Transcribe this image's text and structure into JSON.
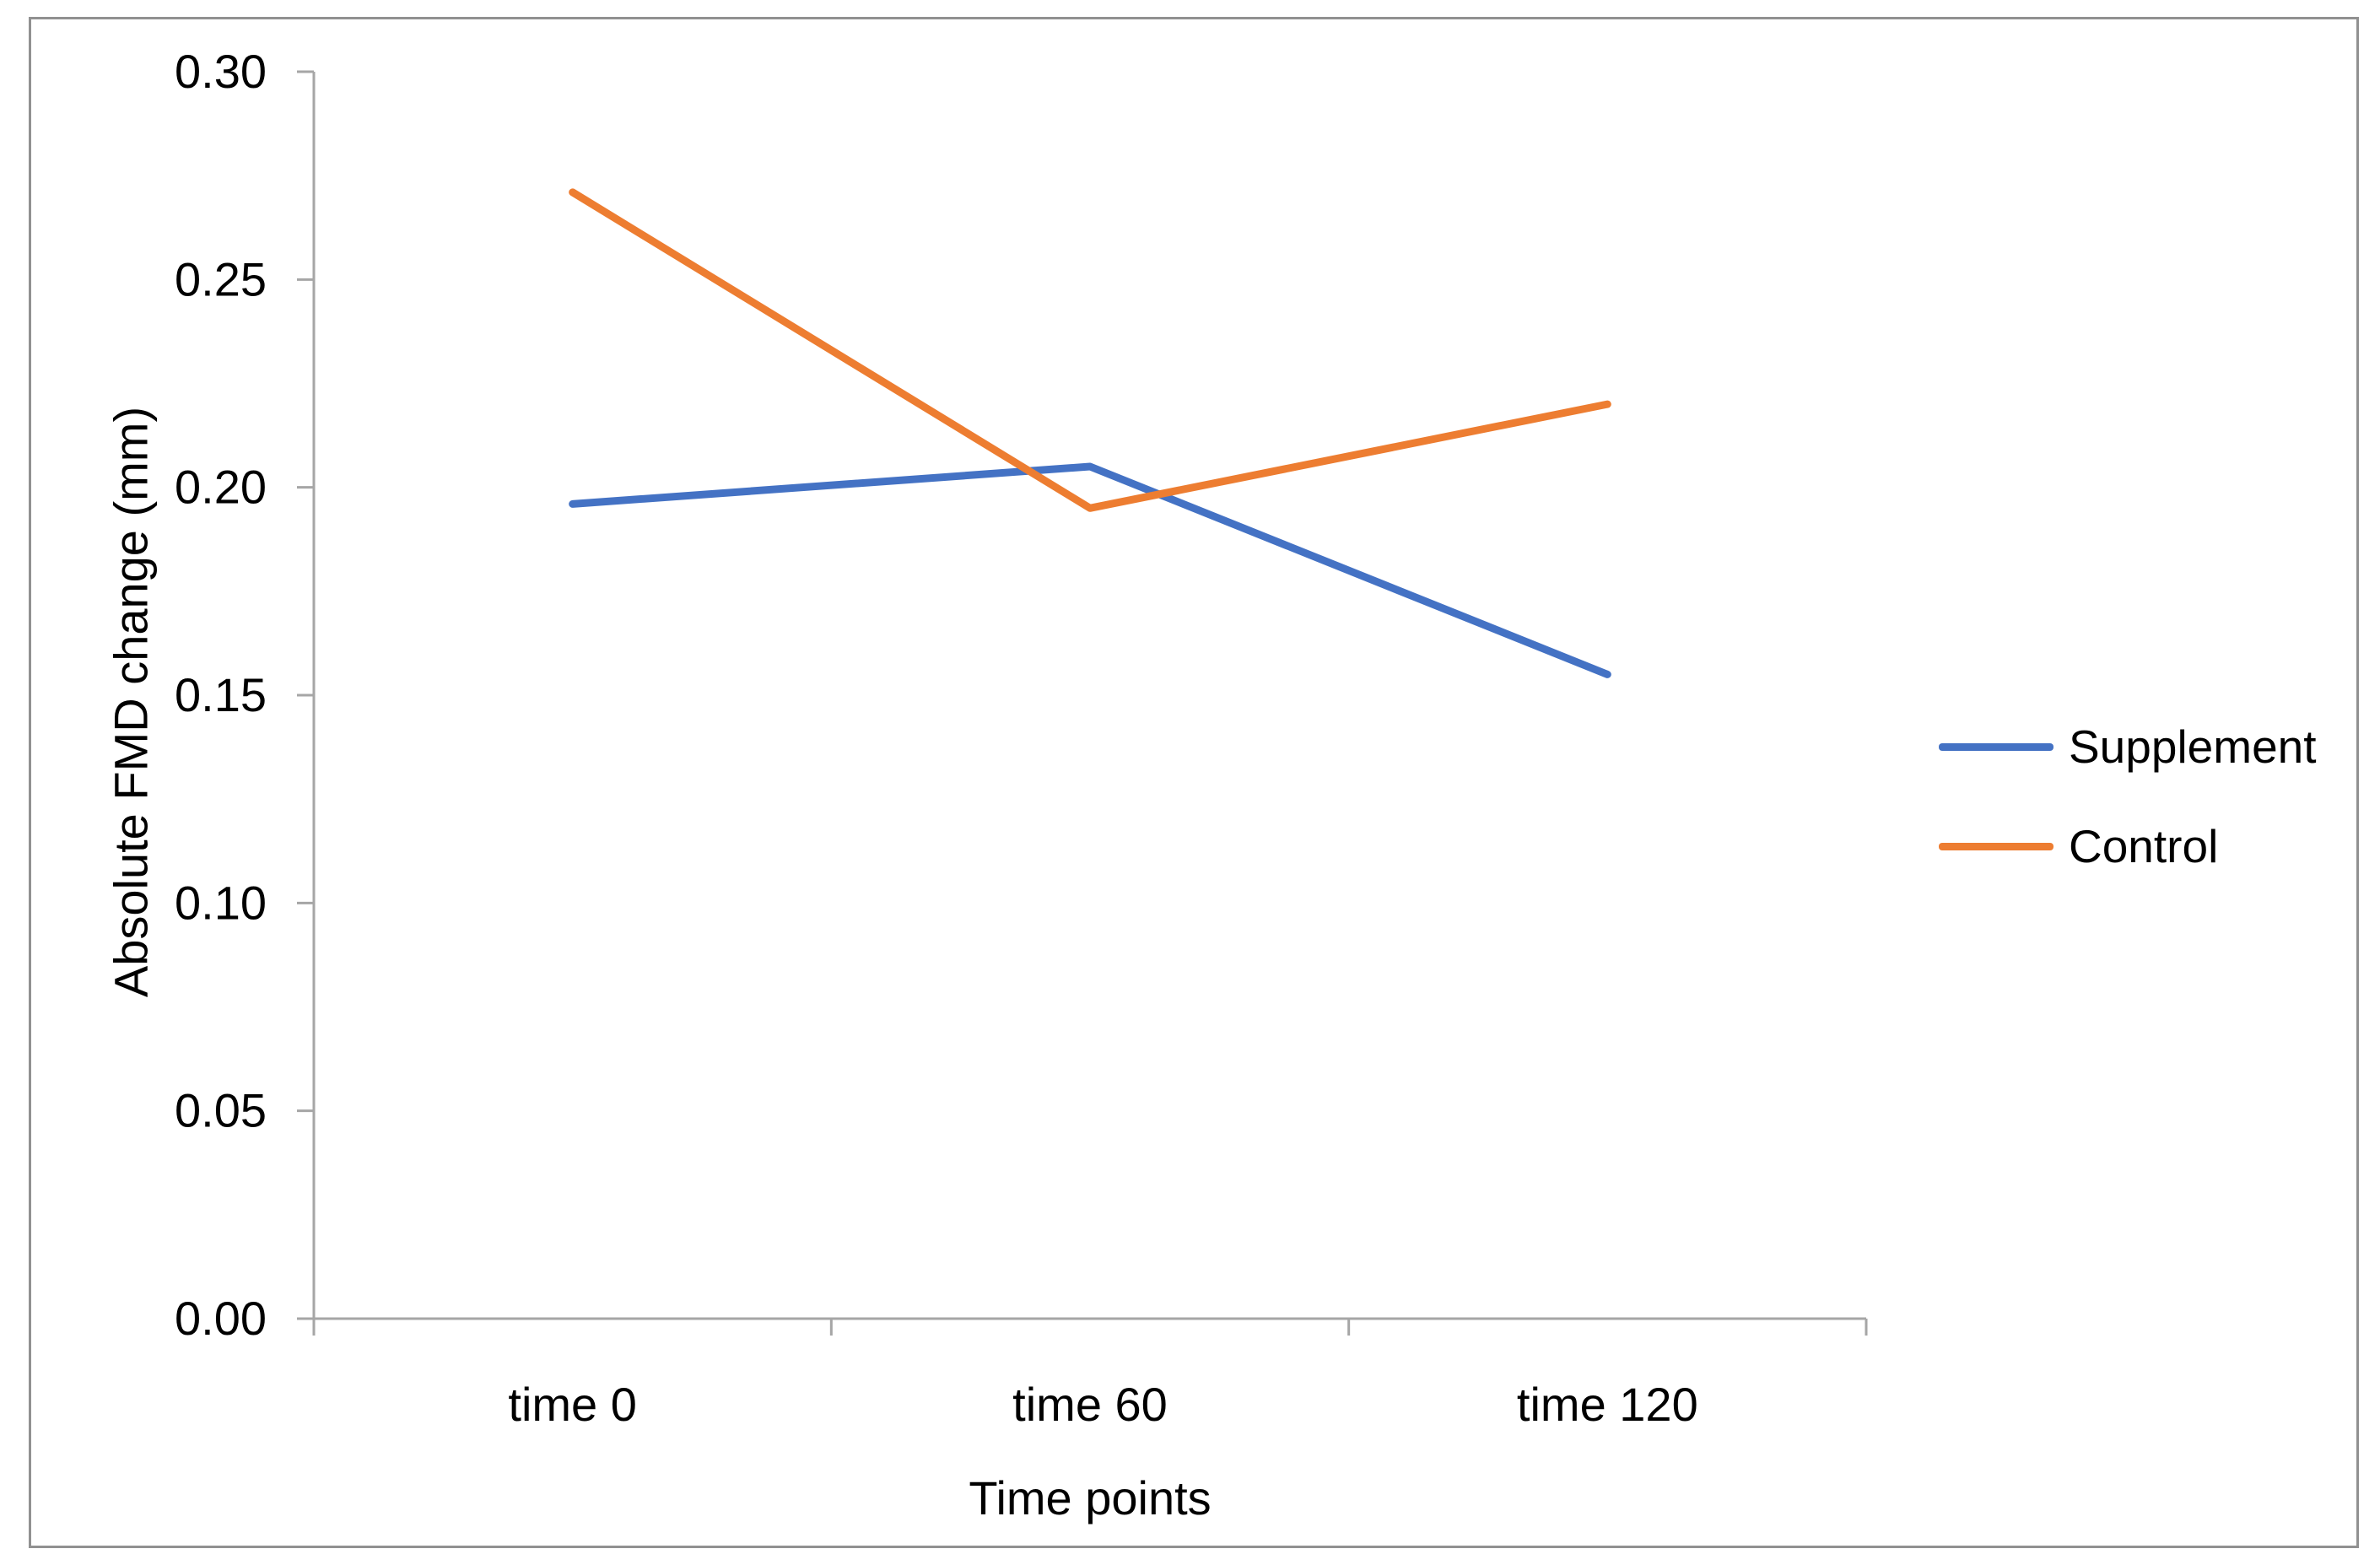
{
  "chart_data": {
    "type": "line",
    "xlabel": "Time points",
    "ylabel": "Absolute FMD change (mm)",
    "categories": [
      "time 0",
      "time 60",
      "time 120"
    ],
    "series": [
      {
        "name": "Supplement",
        "color": "#4472C4",
        "values": [
          0.196,
          0.205,
          0.155
        ]
      },
      {
        "name": "Control",
        "color": "#ED7D31",
        "values": [
          0.271,
          0.195,
          0.22
        ]
      }
    ],
    "ylim": [
      0,
      0.3
    ],
    "ytick_step": 0.05,
    "ytick_labels": [
      "0.00",
      "0.05",
      "0.10",
      "0.15",
      "0.20",
      "0.25",
      "0.30"
    ],
    "grid": false,
    "legend_position": "right",
    "axis_color": "#A6A6A6",
    "border_color": "#919191",
    "text_color": "#000000"
  }
}
